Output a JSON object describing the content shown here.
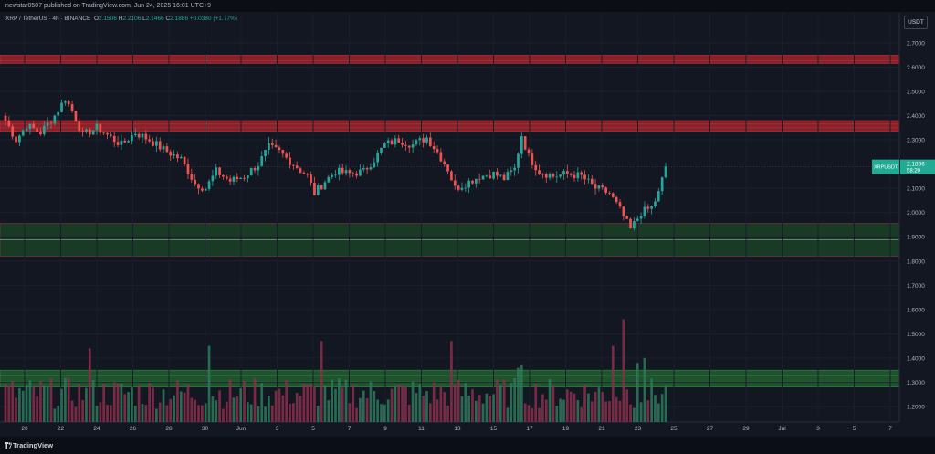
{
  "topbar": {
    "published": "newstar0507 published on TradingView.com, Jun 24, 2025 16:01 UTC+9"
  },
  "legend": {
    "symbol": "XRP / TetherUS · 4h · BINANCE",
    "open_label": "O",
    "open": "2.1506",
    "high_label": "H",
    "high": "2.2106",
    "low_label": "L",
    "low": "2.1466",
    "close_label": "C",
    "close": "2.1886",
    "change": "+0.0380 (+1.77%)"
  },
  "currency": "USDT",
  "footer": {
    "brand": "TradingView"
  },
  "colors": {
    "up": "#26a69a",
    "down": "#ef5350",
    "resistance": "#b2252d",
    "support": "#1f5a28",
    "volume_zone": "#2e9e3c",
    "background": "#131722"
  },
  "chart_data": {
    "type": "candlestick",
    "title": "XRP / TetherUS · 4h · BINANCE",
    "ylim": [
      1.15,
      2.8
    ],
    "y_ticks": [
      "2.7000",
      "2.6000",
      "2.5000",
      "2.4000",
      "2.3000",
      "2.2000",
      "2.1000",
      "2.0000",
      "1.9000",
      "1.8000",
      "1.7000",
      "1.6000",
      "1.5000",
      "1.4000",
      "1.3000",
      "1.2000"
    ],
    "x_ticks": [
      "20",
      "22",
      "24",
      "26",
      "28",
      "30",
      "Jun",
      "3",
      "5",
      "7",
      "9",
      "11",
      "13",
      "15",
      "17",
      "19",
      "21",
      "23",
      "25",
      "27",
      "29",
      "Jul",
      "3",
      "5",
      "7"
    ],
    "price_label": {
      "symbol": "XRPUSDT",
      "value": "2.1886",
      "countdown": "58:20",
      "price": 2.1886
    },
    "zones": [
      {
        "name": "resistance-upper",
        "from": 2.615,
        "to": 2.65,
        "color": "#b2252d"
      },
      {
        "name": "resistance-lower",
        "from": 2.335,
        "to": 2.38,
        "color": "#b2252d"
      },
      {
        "name": "support",
        "from": 1.82,
        "to": 1.955,
        "color": "#1f5a28"
      },
      {
        "name": "volume-zone",
        "from": 1.28,
        "to": 1.35,
        "color": "#2e9e3c"
      }
    ],
    "support_line": 1.888,
    "anchors": [
      [
        0,
        2.38
      ],
      [
        3,
        2.3
      ],
      [
        6,
        2.36
      ],
      [
        10,
        2.33
      ],
      [
        14,
        2.4
      ],
      [
        17,
        2.47
      ],
      [
        19,
        2.42
      ],
      [
        22,
        2.32
      ],
      [
        26,
        2.35
      ],
      [
        30,
        2.31
      ],
      [
        33,
        2.28
      ],
      [
        37,
        2.33
      ],
      [
        41,
        2.3
      ],
      [
        45,
        2.26
      ],
      [
        50,
        2.22
      ],
      [
        54,
        2.12
      ],
      [
        57,
        2.1
      ],
      [
        60,
        2.17
      ],
      [
        64,
        2.13
      ],
      [
        68,
        2.15
      ],
      [
        72,
        2.2
      ],
      [
        75,
        2.27
      ],
      [
        78,
        2.25
      ],
      [
        82,
        2.2
      ],
      [
        86,
        2.15
      ],
      [
        88,
        2.08
      ],
      [
        91,
        2.13
      ],
      [
        94,
        2.17
      ],
      [
        98,
        2.16
      ],
      [
        102,
        2.17
      ],
      [
        105,
        2.22
      ],
      [
        108,
        2.28
      ],
      [
        112,
        2.3
      ],
      [
        116,
        2.28
      ],
      [
        120,
        2.31
      ],
      [
        123,
        2.25
      ],
      [
        126,
        2.18
      ],
      [
        128,
        2.1
      ],
      [
        131,
        2.12
      ],
      [
        135,
        2.15
      ],
      [
        139,
        2.16
      ],
      [
        142,
        2.14
      ],
      [
        145,
        2.18
      ],
      [
        147,
        2.32
      ],
      [
        149,
        2.23
      ],
      [
        152,
        2.17
      ],
      [
        156,
        2.15
      ],
      [
        160,
        2.16
      ],
      [
        164,
        2.15
      ],
      [
        168,
        2.1
      ],
      [
        172,
        2.08
      ],
      [
        175,
        2.01
      ],
      [
        178,
        1.93
      ],
      [
        181,
        2.0
      ],
      [
        184,
        2.02
      ],
      [
        186,
        2.08
      ],
      [
        188,
        2.19
      ]
    ],
    "volume": {
      "base": 1.16,
      "max": 1.56,
      "spikes": [
        [
          24,
          1.44
        ],
        [
          58,
          1.45
        ],
        [
          90,
          1.47
        ],
        [
          127,
          1.47
        ],
        [
          146,
          1.36
        ],
        [
          147,
          1.37
        ],
        [
          173,
          1.45
        ],
        [
          176,
          1.56
        ],
        [
          180,
          1.38
        ],
        [
          182,
          1.4
        ]
      ]
    }
  }
}
